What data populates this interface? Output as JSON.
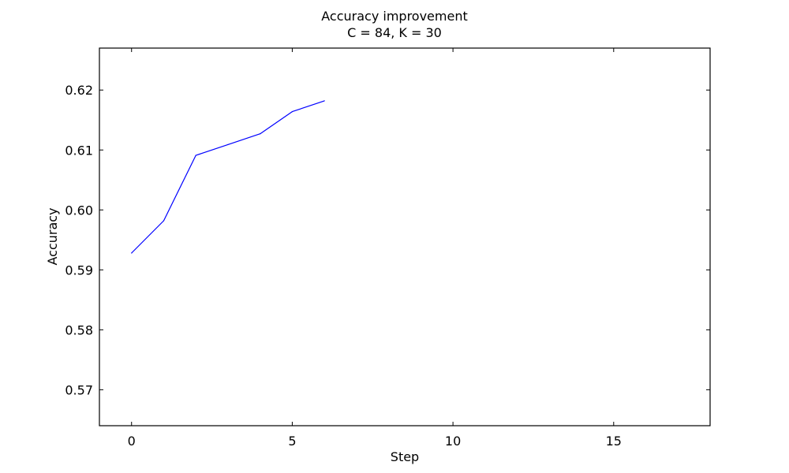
{
  "chart_data": {
    "type": "line",
    "title": "Accuracy improvement",
    "subtitle": "C = 84, K = 30",
    "xlabel": "Step",
    "ylabel": "Accuracy",
    "xlim": [
      -1,
      18
    ],
    "ylim": [
      0.564,
      0.627
    ],
    "x_ticks": [
      0,
      5,
      10,
      15
    ],
    "x_tick_labels": [
      "0",
      "5",
      "10",
      "15"
    ],
    "y_ticks": [
      0.57,
      0.58,
      0.59,
      0.6,
      0.61,
      0.62
    ],
    "y_tick_labels": [
      "0.57",
      "0.58",
      "0.59",
      "0.60",
      "0.61",
      "0.62"
    ],
    "grid": false,
    "series": [
      {
        "color": "#0000ff",
        "x": [
          0,
          1,
          2,
          3,
          4,
          5,
          6
        ],
        "y": [
          0.5928,
          0.5982,
          0.6091,
          0.6109,
          0.6127,
          0.6164,
          0.6182
        ]
      }
    ]
  }
}
